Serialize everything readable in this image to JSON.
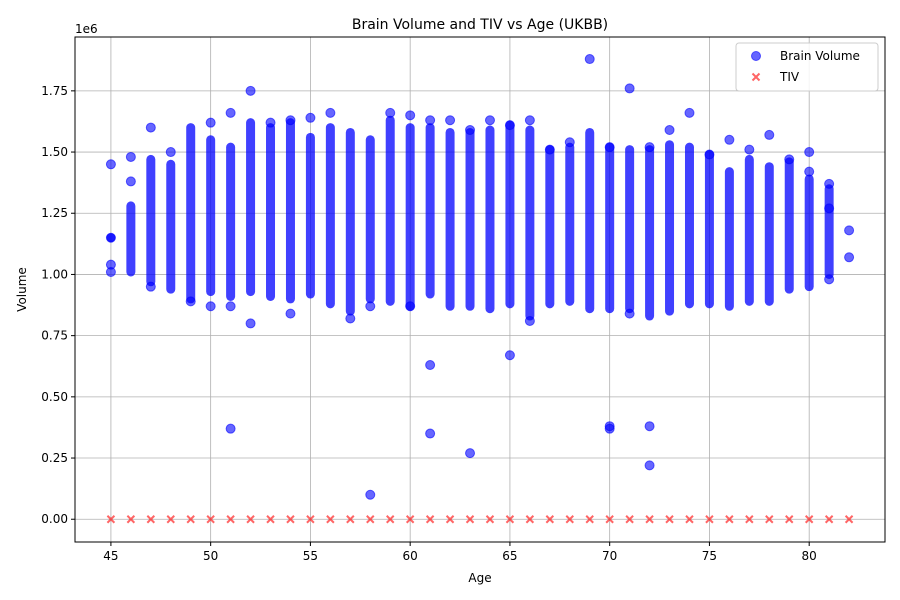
{
  "chart_data": {
    "type": "scatter",
    "title": "Brain Volume and TIV vs Age (UKBB)",
    "xlabel": "Age",
    "ylabel": "Volume",
    "y_multiplier": "1e6",
    "xlim": [
      43.2,
      83.8
    ],
    "ylim": [
      -0.093,
      1.97
    ],
    "x_ticks": [
      45,
      50,
      55,
      60,
      65,
      70,
      75,
      80
    ],
    "y_ticks": [
      0.0,
      0.25,
      0.5,
      0.75,
      1.0,
      1.25,
      1.5,
      1.75
    ],
    "grid": true,
    "legend_position": "top-right",
    "series": [
      {
        "name": "Brain Volume",
        "marker": "circle",
        "color": "#0000ff",
        "points": [
          [
            45,
            1.45
          ],
          [
            45,
            1.15
          ],
          [
            45,
            1.04
          ],
          [
            45,
            1.01
          ],
          [
            46,
            1.48
          ],
          [
            46,
            1.38
          ],
          [
            47,
            1.6
          ],
          [
            47,
            0.95
          ],
          [
            48,
            1.5
          ],
          [
            49,
            0.89
          ],
          [
            50,
            1.62
          ],
          [
            50,
            0.87
          ],
          [
            51,
            1.66
          ],
          [
            51,
            0.87
          ],
          [
            51,
            0.37
          ],
          [
            52,
            1.75
          ],
          [
            52,
            0.8
          ],
          [
            53,
            1.62
          ],
          [
            54,
            1.63
          ],
          [
            54,
            0.84
          ],
          [
            55,
            1.64
          ],
          [
            56,
            1.66
          ],
          [
            57,
            0.82
          ],
          [
            58,
            0.87
          ],
          [
            58,
            0.1
          ],
          [
            59,
            1.66
          ],
          [
            60,
            1.65
          ],
          [
            60,
            0.87
          ],
          [
            61,
            1.63
          ],
          [
            61,
            0.63
          ],
          [
            61,
            0.35
          ],
          [
            62,
            1.63
          ],
          [
            63,
            1.59
          ],
          [
            63,
            0.27
          ],
          [
            64,
            1.63
          ],
          [
            65,
            1.61
          ],
          [
            65,
            0.67
          ],
          [
            66,
            1.63
          ],
          [
            66,
            0.81
          ],
          [
            67,
            1.51
          ],
          [
            68,
            1.54
          ],
          [
            69,
            1.88
          ],
          [
            70,
            1.52
          ],
          [
            70,
            0.38
          ],
          [
            70,
            0.37
          ],
          [
            71,
            1.76
          ],
          [
            71,
            0.84
          ],
          [
            72,
            1.52
          ],
          [
            72,
            0.38
          ],
          [
            72,
            0.22
          ],
          [
            73,
            1.59
          ],
          [
            74,
            1.66
          ],
          [
            75,
            1.49
          ],
          [
            76,
            1.55
          ],
          [
            77,
            1.51
          ],
          [
            78,
            1.57
          ],
          [
            79,
            1.47
          ],
          [
            80,
            1.5
          ],
          [
            80,
            1.42
          ],
          [
            81,
            1.37
          ],
          [
            81,
            1.27
          ],
          [
            81,
            0.98
          ],
          [
            82,
            1.18
          ],
          [
            82,
            1.07
          ]
        ],
        "bands": [
          [
            45,
            1.15,
            1.15
          ],
          [
            46,
            1.01,
            1.28
          ],
          [
            47,
            0.97,
            1.47
          ],
          [
            48,
            0.94,
            1.45
          ],
          [
            49,
            0.9,
            1.6
          ],
          [
            50,
            0.93,
            1.55
          ],
          [
            51,
            0.91,
            1.52
          ],
          [
            52,
            0.93,
            1.62
          ],
          [
            53,
            0.91,
            1.6
          ],
          [
            54,
            0.9,
            1.62
          ],
          [
            55,
            0.92,
            1.56
          ],
          [
            56,
            0.88,
            1.6
          ],
          [
            57,
            0.85,
            1.58
          ],
          [
            58,
            0.9,
            1.55
          ],
          [
            59,
            0.89,
            1.63
          ],
          [
            60,
            0.87,
            1.6
          ],
          [
            61,
            0.92,
            1.6
          ],
          [
            62,
            0.87,
            1.58
          ],
          [
            63,
            0.87,
            1.58
          ],
          [
            64,
            0.86,
            1.59
          ],
          [
            65,
            0.88,
            1.61
          ],
          [
            66,
            0.83,
            1.59
          ],
          [
            67,
            0.88,
            1.51
          ],
          [
            68,
            0.89,
            1.52
          ],
          [
            69,
            0.86,
            1.58
          ],
          [
            70,
            0.86,
            1.52
          ],
          [
            71,
            0.86,
            1.51
          ],
          [
            72,
            0.83,
            1.51
          ],
          [
            73,
            0.85,
            1.53
          ],
          [
            74,
            0.88,
            1.52
          ],
          [
            75,
            0.88,
            1.49
          ],
          [
            76,
            0.87,
            1.42
          ],
          [
            77,
            0.89,
            1.47
          ],
          [
            78,
            0.89,
            1.44
          ],
          [
            79,
            0.94,
            1.46
          ],
          [
            80,
            0.95,
            1.39
          ],
          [
            81,
            1.0,
            1.35
          ]
        ]
      },
      {
        "name": "TIV",
        "marker": "x",
        "color": "#ff0000",
        "x": [
          45,
          46,
          47,
          48,
          49,
          50,
          51,
          52,
          53,
          54,
          55,
          56,
          57,
          58,
          59,
          60,
          61,
          62,
          63,
          64,
          65,
          66,
          67,
          68,
          69,
          70,
          71,
          72,
          73,
          74,
          75,
          76,
          77,
          78,
          79,
          80,
          81,
          82
        ],
        "y": [
          0,
          0,
          0,
          0,
          0,
          0,
          0,
          0,
          0,
          0,
          0,
          0,
          0,
          0,
          0,
          0,
          0,
          0,
          0,
          0,
          0,
          0,
          0,
          0,
          0,
          0,
          0,
          0,
          0,
          0,
          0,
          0,
          0,
          0,
          0,
          0,
          0,
          0
        ]
      }
    ]
  }
}
